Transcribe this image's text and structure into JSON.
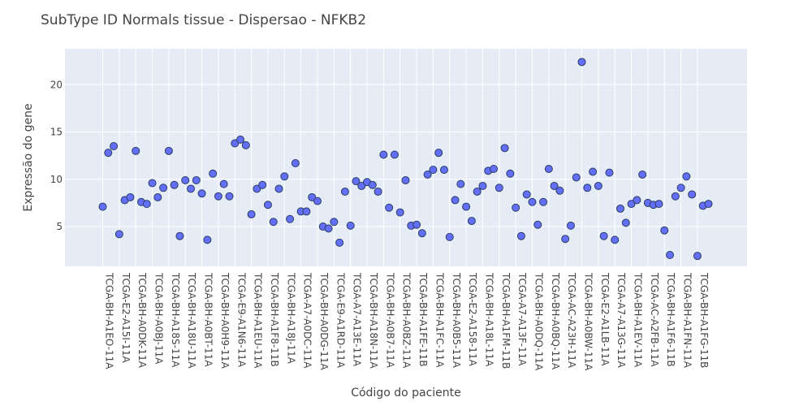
{
  "chart_data": {
    "type": "scatter",
    "title": "SubType ID Normals tissue - Dispersao - NFKB2",
    "xlabel": "Código do paciente",
    "ylabel": "Expressão do gene",
    "ylim": [
      0.8,
      23.8
    ],
    "yticks": [
      5,
      10,
      15,
      20
    ],
    "grid": true,
    "legend": "none",
    "colors": {
      "marker": "#636efa",
      "marker_line": "#2a3f5f",
      "plot_bg": "#e5ecf6",
      "grid": "#ffffff"
    },
    "x_tick_labels": [
      "TCGA-BH-A1EO-11A",
      "TCGA-E2-A15I-11A",
      "TCGA-BH-A0DK-11A",
      "TCGA-BH-A0BJ-11A",
      "TCGA-BH-A18S-11A",
      "TCGA-BH-A18U-11A",
      "TCGA-BH-A0BT-11A",
      "TCGA-BH-A0H9-11A",
      "TCGA-E9-A1N6-11A",
      "TCGA-BH-A1EU-11A",
      "TCGA-BH-A1F8-11B",
      "TCGA-BH-A18J-11A",
      "TCGA-A7-A0DC-11A",
      "TCGA-BH-A0DG-11A",
      "TCGA-E9-A1RD-11A",
      "TCGA-A7-A13E-11A",
      "TCGA-BH-A18N-11A",
      "TCGA-BH-A0B7-11A",
      "TCGA-BH-A0BZ-11A",
      "TCGA-BH-A1FE-11B",
      "TCGA-BH-A1FC-11A",
      "TCGA-BH-A0B5-11A",
      "TCGA-E2-A158-11A",
      "TCGA-BH-A18L-11A",
      "TCGA-BH-A1FM-11B",
      "TCGA-A7-A13F-11A",
      "TCGA-BH-A0DQ-11A",
      "TCGA-BH-A0BQ-11A",
      "TCGA-AC-A23H-11A",
      "TCGA-BH-A0BW-11A",
      "TCGA-E2-A1LB-11A",
      "TCGA-A7-A13G-11A",
      "TCGA-BH-A1EV-11A",
      "TCGA-AC-A2FB-11A",
      "TCGA-BH-A1F6-11B",
      "TCGA-BH-A1FN-11A",
      "TCGA-BH-A1FG-11B"
    ],
    "y": [
      7.1,
      12.8,
      13.5,
      4.2,
      7.8,
      8.1,
      13.0,
      7.6,
      7.4,
      9.6,
      8.1,
      9.1,
      13.0,
      9.4,
      4.0,
      9.9,
      9.0,
      9.9,
      8.5,
      3.6,
      10.6,
      8.2,
      9.5,
      8.2,
      13.8,
      14.2,
      13.6,
      6.3,
      9.0,
      9.4,
      7.3,
      5.5,
      9.0,
      10.3,
      5.8,
      11.7,
      6.6,
      6.6,
      8.1,
      7.7,
      5.0,
      4.8,
      5.5,
      3.3,
      8.7,
      5.1,
      9.8,
      9.3,
      9.7,
      9.4,
      8.7,
      12.6,
      7.0,
      12.6,
      6.5,
      9.9,
      5.1,
      5.2,
      4.3,
      10.5,
      11.0,
      12.8,
      11.0,
      3.9,
      7.8,
      9.5,
      7.1,
      5.6,
      8.7,
      9.3,
      10.9,
      11.1,
      9.1,
      13.3,
      10.6,
      7.0,
      4.0,
      8.4,
      7.6,
      5.2,
      7.6,
      11.1,
      9.3,
      8.8,
      3.7,
      5.1,
      10.2,
      22.4,
      9.1,
      10.8,
      9.3,
      4.0,
      10.7,
      3.6,
      6.9,
      5.4,
      7.4,
      7.8,
      10.5,
      7.5,
      7.3,
      7.4,
      4.6,
      2.0,
      8.2,
      9.1,
      10.3,
      8.4,
      1.9,
      7.2,
      7.4
    ]
  }
}
